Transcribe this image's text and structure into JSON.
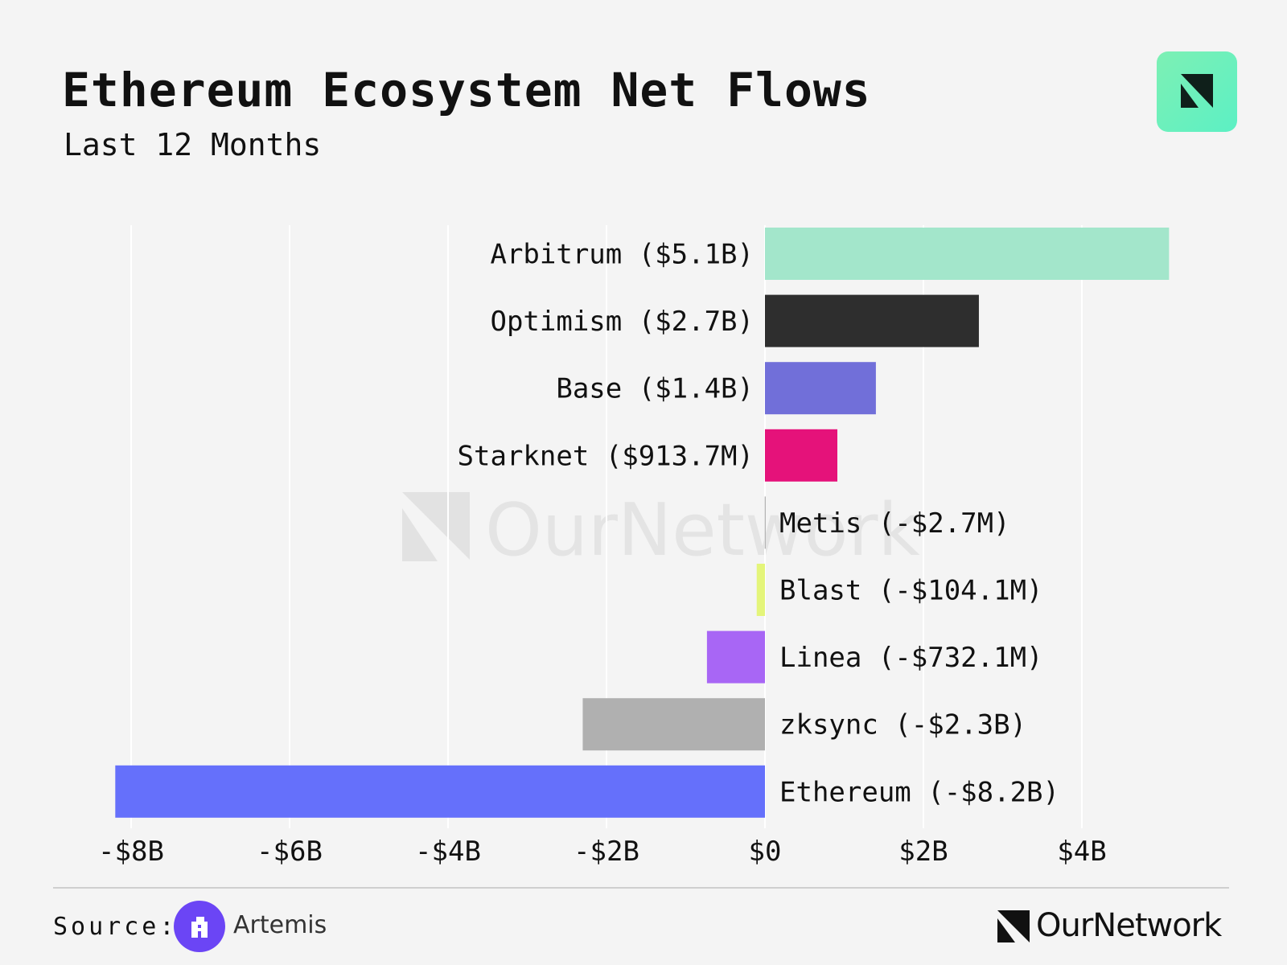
{
  "header": {
    "title": "Ethereum Ecosystem Net Flows",
    "subtitle": "Last 12 Months"
  },
  "icons": {
    "top_right_logo": "ournetwork-logo-icon",
    "source_logo": "artemis-logo-icon",
    "brand_logo": "ournetwork-logo-icon"
  },
  "watermark": "OurNetwork",
  "footer": {
    "source_label": "Source:",
    "source_name": "Artemis",
    "brand_name": "OurNetwork"
  },
  "chart_data": {
    "type": "bar",
    "orientation": "horizontal",
    "title": "Ethereum Ecosystem Net Flows",
    "subtitle": "Last 12 Months",
    "xlim": [
      -8,
      5.2
    ],
    "x_unit": "billion USD",
    "x_ticks": [
      -8,
      -6,
      -4,
      -2,
      0,
      2,
      4
    ],
    "x_tick_labels": [
      "-$8B",
      "-$6B",
      "-$4B",
      "-$2B",
      "$0",
      "$2B",
      "$4B"
    ],
    "grid": true,
    "categories": [
      "Arbitrum",
      "Optimism",
      "Base",
      "Starknet",
      "Metis",
      "Blast",
      "Linea",
      "zksync",
      "Ethereum"
    ],
    "labels": [
      "Arbitrum ($5.1B)",
      "Optimism ($2.7B)",
      "Base ($1.4B)",
      "Starknet ($913.7M)",
      "Metis (-$2.7M)",
      "Blast (-$104.1M)",
      "Linea (-$732.1M)",
      "zksync (-$2.3B)",
      "Ethereum (-$8.2B)"
    ],
    "values": [
      5.1,
      2.7,
      1.4,
      0.9137,
      -0.0027,
      -0.1041,
      -0.7321,
      -2.3,
      -8.2
    ],
    "colors": [
      "#a3e6cb",
      "#2e2e2e",
      "#716fd9",
      "#e5127a",
      "#9a9a9a",
      "#e4f57a",
      "#a866f5",
      "#b0b0b0",
      "#6570fb"
    ]
  }
}
